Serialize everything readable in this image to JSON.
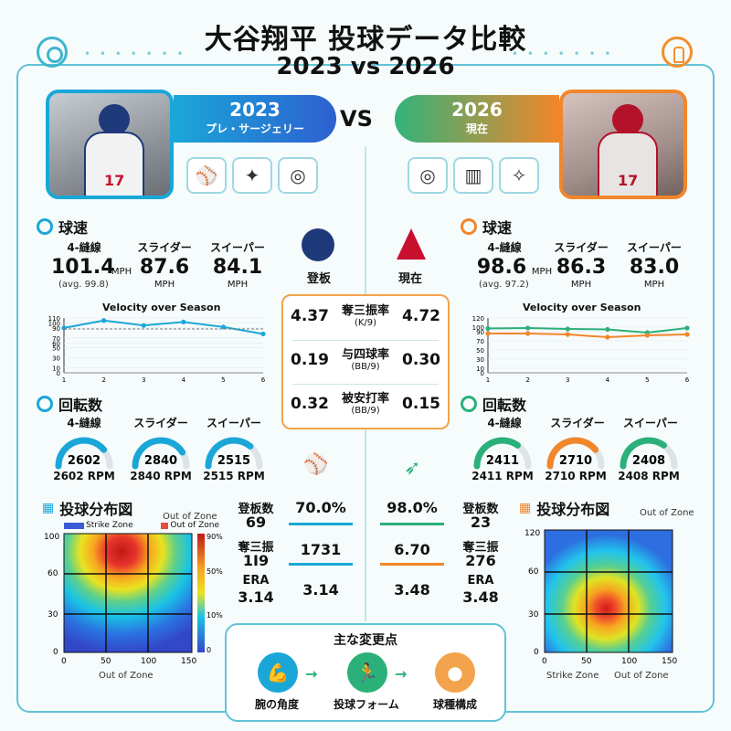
{
  "title": "大谷翔平 投球データ比較",
  "subtitle": "2023 vs 2026",
  "left": {
    "year": "2023",
    "label": "プレ・サージェリー",
    "jersey": "17",
    "center_label": "登板",
    "velocity": {
      "title": "球速",
      "pitches": [
        {
          "name": "4-縫線",
          "value": "101.4",
          "unit": "MPH",
          "note": "(avg. 99.8)"
        },
        {
          "name": "スライダー",
          "value": "87.6",
          "unit": "MPH"
        },
        {
          "name": "スイーパー",
          "value": "84.1",
          "unit": "MPH"
        }
      ],
      "chart_title": "Velocity over Season"
    },
    "spin": {
      "title": "回転数",
      "pitches": [
        {
          "name": "4-縫線",
          "value": "2602",
          "label": "2602 RPM",
          "fill": 0.78
        },
        {
          "name": "スライダー",
          "value": "2840",
          "label": "2840 RPM",
          "fill": 0.82
        },
        {
          "name": "スイーパー",
          "value": "2515",
          "label": "2515 RPM",
          "fill": 0.72
        }
      ]
    },
    "stats": {
      "appearances_label": "登板数",
      "appearances": "69",
      "strike_pct": "70.0%",
      "strikeouts_label": "奪三振",
      "strikeouts": "1I9",
      "strikeouts_center": "1731",
      "era_label": "ERA",
      "era": "3.14",
      "era_center": "3.14"
    },
    "heatmap": {
      "title": "投球分布図",
      "legend_strike": "Strike Zone",
      "legend_out": "Out of Zone",
      "legend_top": "Out of Zone",
      "xlabel": "Out of Zone",
      "scale": [
        "90%",
        "50%",
        "10%",
        "0"
      ],
      "y_ticks": [
        "100",
        "60",
        "30",
        "0"
      ],
      "x_ticks": [
        "0",
        "50",
        "100",
        "150"
      ]
    }
  },
  "right": {
    "year": "2026",
    "label": "現在",
    "jersey": "17",
    "center_label": "現在",
    "velocity": {
      "title": "球速",
      "pitches": [
        {
          "name": "4-縫線",
          "value": "98.6",
          "unit": "MPH",
          "note": "(avg. 97.2)"
        },
        {
          "name": "スライダー",
          "value": "86.3",
          "unit": "MPH"
        },
        {
          "name": "スイーパー",
          "value": "83.0",
          "unit": "MPH"
        }
      ],
      "chart_title": "Velocity over Season"
    },
    "spin": {
      "title": "回転数",
      "pitches": [
        {
          "name": "4-縫線",
          "value": "2411",
          "label": "2411 RPM",
          "fill": 0.7,
          "color": "#2bb07a"
        },
        {
          "name": "スライダー",
          "value": "2710",
          "label": "2710 RPM",
          "fill": 0.78,
          "color": "#f2862a"
        },
        {
          "name": "スイーパー",
          "value": "2408",
          "label": "2408 RPM",
          "fill": 0.7,
          "color": "#2bb07a"
        }
      ]
    },
    "stats": {
      "appearances_label": "登板数",
      "appearances": "23",
      "strike_pct": "98.0%",
      "strikeouts_label": "奪三振",
      "strikeouts": "276",
      "strikeouts_center": "6.70",
      "era_label": "ERA",
      "era": "3.48",
      "era_center": "3.48"
    },
    "heatmap": {
      "title": "投球分布図",
      "legend_top": "Out of Zone",
      "xlabel_left": "Strike Zone",
      "xlabel_right": "Out of Zone",
      "y_ticks": [
        "120",
        "60",
        "30",
        "0"
      ],
      "x_ticks": [
        "0",
        "50",
        "100",
        "150"
      ]
    }
  },
  "vs": "VS",
  "center_stats": [
    {
      "label": "奪三振率",
      "sub": "(K/9)",
      "left": "4.37",
      "right": "4.72"
    },
    {
      "label": "与四球率",
      "sub": "(BB/9)",
      "left": "0.19",
      "right": "0.30"
    },
    {
      "label": "被安打率",
      "sub": "(BB/9)",
      "left": "0.32",
      "right": "0.15"
    }
  ],
  "changes": {
    "title": "主な変更点",
    "items": [
      {
        "label": "腕の角度"
      },
      {
        "label": "投球フォーム"
      },
      {
        "label": "球種構成"
      }
    ]
  },
  "colors": {
    "blue": "#1aa7d8",
    "orange": "#f2862a",
    "green": "#2bb07a"
  },
  "chart_data": [
    {
      "type": "line",
      "title": "Velocity over Season",
      "x": [
        1,
        2,
        3,
        4,
        5,
        6
      ],
      "series": [
        {
          "values": [
            90,
            105,
            95,
            102,
            92,
            78
          ],
          "color": "#1aa7d8"
        },
        {
          "values": [
            88,
            88,
            88,
            88,
            88,
            88
          ],
          "color": "#777777",
          "dashed": true
        }
      ],
      "ylim": [
        0,
        110
      ],
      "y_ticks": [
        0,
        10,
        30,
        50,
        60,
        70,
        90,
        100,
        110
      ],
      "x_ticks": [
        1,
        2,
        3,
        4,
        5,
        6
      ]
    },
    {
      "type": "line",
      "title": "Velocity over Season",
      "x": [
        1,
        2,
        3,
        4,
        5,
        6
      ],
      "series": [
        {
          "values": [
            97,
            98,
            96,
            95,
            88,
            98
          ],
          "color": "#2bb07a"
        },
        {
          "values": [
            86,
            86,
            84,
            78,
            82,
            84
          ],
          "color": "#f2862a"
        }
      ],
      "ylim": [
        0,
        120
      ],
      "y_ticks": [
        0,
        10,
        30,
        50,
        70,
        90,
        100,
        120
      ],
      "x_ticks": [
        1,
        2,
        3,
        4,
        5,
        6
      ]
    }
  ]
}
